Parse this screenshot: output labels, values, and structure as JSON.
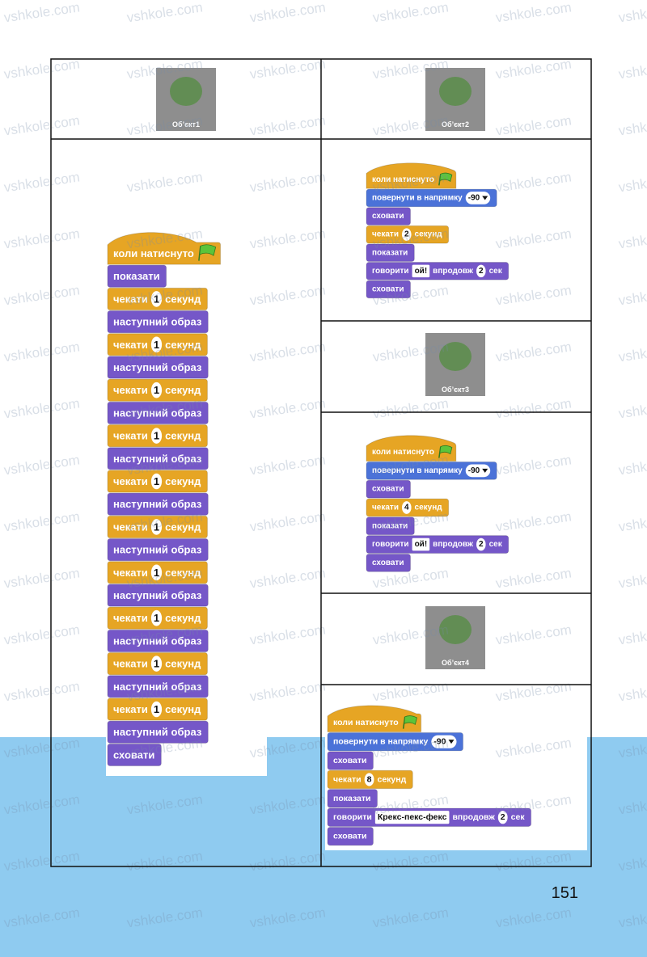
{
  "watermark": "vshkole.com",
  "page_number": "151",
  "left": [
    {
      "sprite": "Об’єкт1"
    },
    {
      "script": [
        {
          "kind": "hat",
          "parts": [
            "коли натиснуто"
          ]
        },
        {
          "kind": "looks",
          "parts": [
            "показати"
          ]
        },
        {
          "kind": "control",
          "parts": [
            "чекати",
            {
              "input": "1"
            },
            "секунд"
          ]
        },
        {
          "kind": "looks",
          "parts": [
            "наступний образ"
          ]
        },
        {
          "kind": "control",
          "parts": [
            "чекати",
            {
              "input": "1"
            },
            "секунд"
          ]
        },
        {
          "kind": "looks",
          "parts": [
            "наступний образ"
          ]
        },
        {
          "kind": "control",
          "parts": [
            "чекати",
            {
              "input": "1"
            },
            "секунд"
          ]
        },
        {
          "kind": "looks",
          "parts": [
            "наступний образ"
          ]
        },
        {
          "kind": "control",
          "parts": [
            "чекати",
            {
              "input": "1"
            },
            "секунд"
          ]
        },
        {
          "kind": "looks",
          "parts": [
            "наступний образ"
          ]
        },
        {
          "kind": "control",
          "parts": [
            "чекати",
            {
              "input": "1"
            },
            "секунд"
          ]
        },
        {
          "kind": "looks",
          "parts": [
            "наступний образ"
          ]
        },
        {
          "kind": "control",
          "parts": [
            "чекати",
            {
              "input": "1"
            },
            "секунд"
          ]
        },
        {
          "kind": "looks",
          "parts": [
            "наступний образ"
          ]
        },
        {
          "kind": "control",
          "parts": [
            "чекати",
            {
              "input": "1"
            },
            "секунд"
          ]
        },
        {
          "kind": "looks",
          "parts": [
            "наступний образ"
          ]
        },
        {
          "kind": "control",
          "parts": [
            "чекати",
            {
              "input": "1"
            },
            "секунд"
          ]
        },
        {
          "kind": "looks",
          "parts": [
            "наступний образ"
          ]
        },
        {
          "kind": "control",
          "parts": [
            "чекати",
            {
              "input": "1"
            },
            "секунд"
          ]
        },
        {
          "kind": "looks",
          "parts": [
            "наступний образ"
          ]
        },
        {
          "kind": "control",
          "parts": [
            "чекати",
            {
              "input": "1"
            },
            "секунд"
          ]
        },
        {
          "kind": "looks",
          "parts": [
            "наступний образ"
          ]
        },
        {
          "kind": "looks",
          "parts": [
            "сховати"
          ]
        }
      ]
    }
  ],
  "right": [
    {
      "sprite": "Об’єкт2"
    },
    {
      "script": [
        {
          "kind": "hat",
          "parts": [
            "коли натиснуто"
          ]
        },
        {
          "kind": "motion",
          "parts": [
            "повернути в напрямку",
            {
              "input": "-90",
              "menu": true
            }
          ]
        },
        {
          "kind": "looks",
          "parts": [
            "сховати"
          ]
        },
        {
          "kind": "control",
          "parts": [
            "чекати",
            {
              "input": "2"
            },
            "секунд"
          ]
        },
        {
          "kind": "looks",
          "parts": [
            "показати"
          ]
        },
        {
          "kind": "looks",
          "parts": [
            "говорити",
            {
              "input": "ой!",
              "square": true
            },
            "впродовж",
            {
              "input": "2"
            },
            "сек"
          ]
        },
        {
          "kind": "looks",
          "parts": [
            "сховати"
          ]
        }
      ]
    },
    {
      "sprite": "Об’єкт3"
    },
    {
      "script": [
        {
          "kind": "hat",
          "parts": [
            "коли натиснуто"
          ]
        },
        {
          "kind": "motion",
          "parts": [
            "повернути в напрямку",
            {
              "input": "-90",
              "menu": true
            }
          ]
        },
        {
          "kind": "looks",
          "parts": [
            "сховати"
          ]
        },
        {
          "kind": "control",
          "parts": [
            "чекати",
            {
              "input": "4"
            },
            "секунд"
          ]
        },
        {
          "kind": "looks",
          "parts": [
            "показати"
          ]
        },
        {
          "kind": "looks",
          "parts": [
            "говорити",
            {
              "input": "ой!",
              "square": true
            },
            "впродовж",
            {
              "input": "2"
            },
            "сек"
          ]
        },
        {
          "kind": "looks",
          "parts": [
            "сховати"
          ]
        }
      ]
    },
    {
      "sprite": "Об’єкт4"
    },
    {
      "script": [
        {
          "kind": "hat",
          "parts": [
            "коли натиснуто"
          ]
        },
        {
          "kind": "motion",
          "parts": [
            "повернути в напрямку",
            {
              "input": "-90",
              "menu": true
            }
          ]
        },
        {
          "kind": "looks",
          "parts": [
            "сховати"
          ]
        },
        {
          "kind": "control",
          "parts": [
            "чекати",
            {
              "input": "8"
            },
            "секунд"
          ]
        },
        {
          "kind": "looks",
          "parts": [
            "показати"
          ]
        },
        {
          "kind": "looks",
          "parts": [
            "говорити",
            {
              "input": "Крекс-пекс-фекс",
              "square": true
            },
            "впродовж",
            {
              "input": "2"
            },
            "сек"
          ]
        },
        {
          "kind": "looks",
          "parts": [
            "сховати"
          ]
        }
      ]
    }
  ]
}
